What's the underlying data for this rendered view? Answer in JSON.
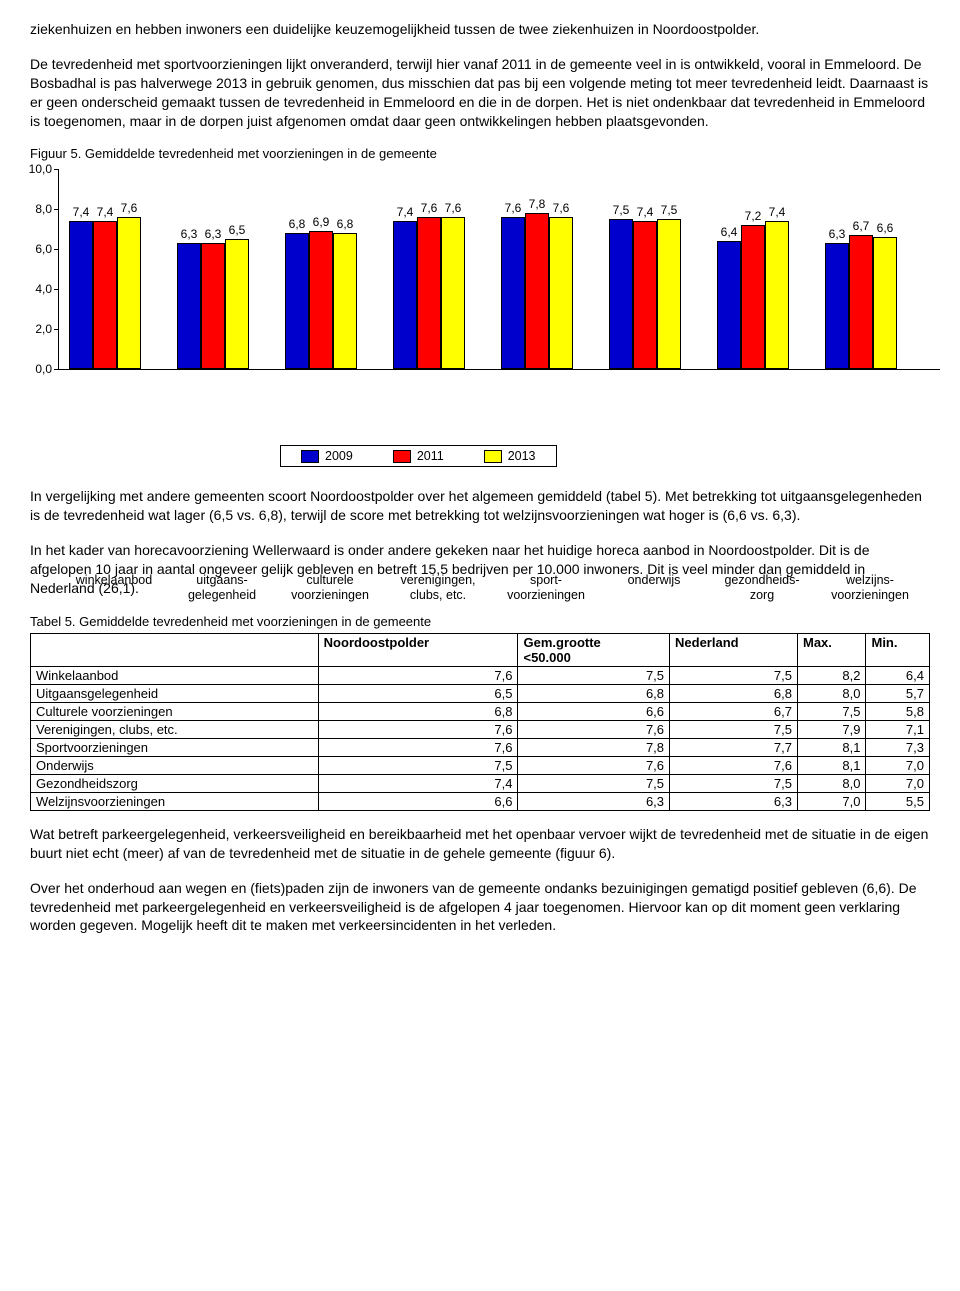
{
  "text": {
    "p1": "ziekenhuizen en hebben inwoners een duidelijke keuzemogelijkheid tussen de twee ziekenhuizen in Noordoostpolder.",
    "p2": "De tevredenheid met sportvoorzieningen lijkt onveranderd, terwijl hier vanaf 2011 in de gemeente veel in is ontwikkeld, vooral in Emmeloord. De Bosbadhal is pas halverwege 2013 in gebruik genomen, dus misschien dat pas bij een volgende meting tot meer tevredenheid leidt. Daarnaast is er geen onderscheid gemaakt tussen de tevredenheid in Emmeloord en die in de dorpen. Het is niet ondenkbaar dat tevredenheid in Emmeloord is toegenomen, maar in de dorpen juist afgenomen omdat daar geen ontwikkelingen hebben plaatsgevonden.",
    "fig_caption": "Figuur 5. Gemiddelde tevredenheid met voorzieningen in de gemeente",
    "p3": "In vergelijking met andere gemeenten scoort Noordoostpolder over het algemeen gemiddeld (tabel 5). Met betrekking tot uitgaansgelegenheden is de tevredenheid wat lager (6,5 vs. 6,8), terwijl de score met betrekking tot welzijnsvoorzieningen wat hoger is (6,6 vs. 6,3).",
    "p4": "In het kader van horecavoorziening Wellerwaard is onder andere gekeken naar het huidige horeca aanbod in Noordoostpolder. Dit is de afgelopen 10 jaar in aantal ongeveer gelijk gebleven en betreft 15,5 bedrijven per 10.000 inwoners. Dit is veel minder dan gemiddeld in Nederland (26,1).",
    "tbl_caption": "Tabel 5. Gemiddelde tevredenheid met voorzieningen in de gemeente",
    "p5": "Wat betreft parkeergelegenheid, verkeersveiligheid en bereikbaarheid met het openbaar vervoer wijkt de tevredenheid met de situatie in de eigen buurt niet echt (meer) af van de tevredenheid met de situatie in de gehele gemeente (figuur 6).",
    "p6": "Over het onderhoud aan wegen en (fiets)paden zijn de inwoners van de gemeente ondanks bezuinigingen gematigd positief gebleven (6,6). De tevredenheid met parkeergelegenheid en verkeersveiligheid is de afgelopen 4 jaar toegenomen. Hiervoor kan op dit moment geen verklaring worden gegeven. Mogelijk heeft dit te maken met verkeersincidenten in het verleden."
  },
  "chart": {
    "type": "bar",
    "ymax": 10.0,
    "ytick_step": 2.0,
    "colors": {
      "2009": "#0000cc",
      "2011": "#ff0000",
      "2013": "#ffff00"
    },
    "border_color": "#000000",
    "series_labels": [
      "2009",
      "2011",
      "2013"
    ],
    "categories": [
      {
        "label": "winkelaanbod",
        "v": [
          "7,4",
          "7,4",
          "7,6"
        ]
      },
      {
        "label": "uitgaans-\ngelegenheid",
        "v": [
          "6,3",
          "6,3",
          "6,5"
        ]
      },
      {
        "label": "culturele\nvoorzieningen",
        "v": [
          "6,8",
          "6,9",
          "6,8"
        ]
      },
      {
        "label": "verenigingen,\nclubs, etc.",
        "v": [
          "7,4",
          "7,6",
          "7,6"
        ]
      },
      {
        "label": "sport-\nvoorzieningen",
        "v": [
          "7,6",
          "7,8",
          "7,6"
        ]
      },
      {
        "label": "onderwijs",
        "v": [
          "7,5",
          "7,4",
          "7,5"
        ]
      },
      {
        "label": "gezondheids-\nzorg",
        "v": [
          "6,4",
          "7,2",
          "7,4"
        ]
      },
      {
        "label": "welzijns-\nvoorzieningen",
        "v": [
          "6,3",
          "6,7",
          "6,6"
        ]
      }
    ],
    "yticks": [
      "0,0",
      "2,0",
      "4,0",
      "6,0",
      "8,0",
      "10,0"
    ]
  },
  "table": {
    "columns": [
      "",
      "Noordoostpolder",
      "Gem.grootte <50.000",
      "Nederland",
      "Max.",
      "Min."
    ],
    "rows": [
      [
        "Winkelaanbod",
        "7,6",
        "7,5",
        "7,5",
        "8,2",
        "6,4"
      ],
      [
        "Uitgaansgelegenheid",
        "6,5",
        "6,8",
        "6,8",
        "8,0",
        "5,7"
      ],
      [
        "Culturele voorzieningen",
        "6,8",
        "6,6",
        "6,7",
        "7,5",
        "5,8"
      ],
      [
        "Verenigingen, clubs, etc.",
        "7,6",
        "7,6",
        "7,5",
        "7,9",
        "7,1"
      ],
      [
        "Sportvoorzieningen",
        "7,6",
        "7,8",
        "7,7",
        "8,1",
        "7,3"
      ],
      [
        "Onderwijs",
        "7,5",
        "7,6",
        "7,6",
        "8,1",
        "7,0"
      ],
      [
        "Gezondheidszorg",
        "7,4",
        "7,5",
        "7,5",
        "8,0",
        "7,0"
      ],
      [
        "Welzijnsvoorzieningen",
        "6,6",
        "6,3",
        "6,3",
        "7,0",
        "5,5"
      ]
    ]
  }
}
